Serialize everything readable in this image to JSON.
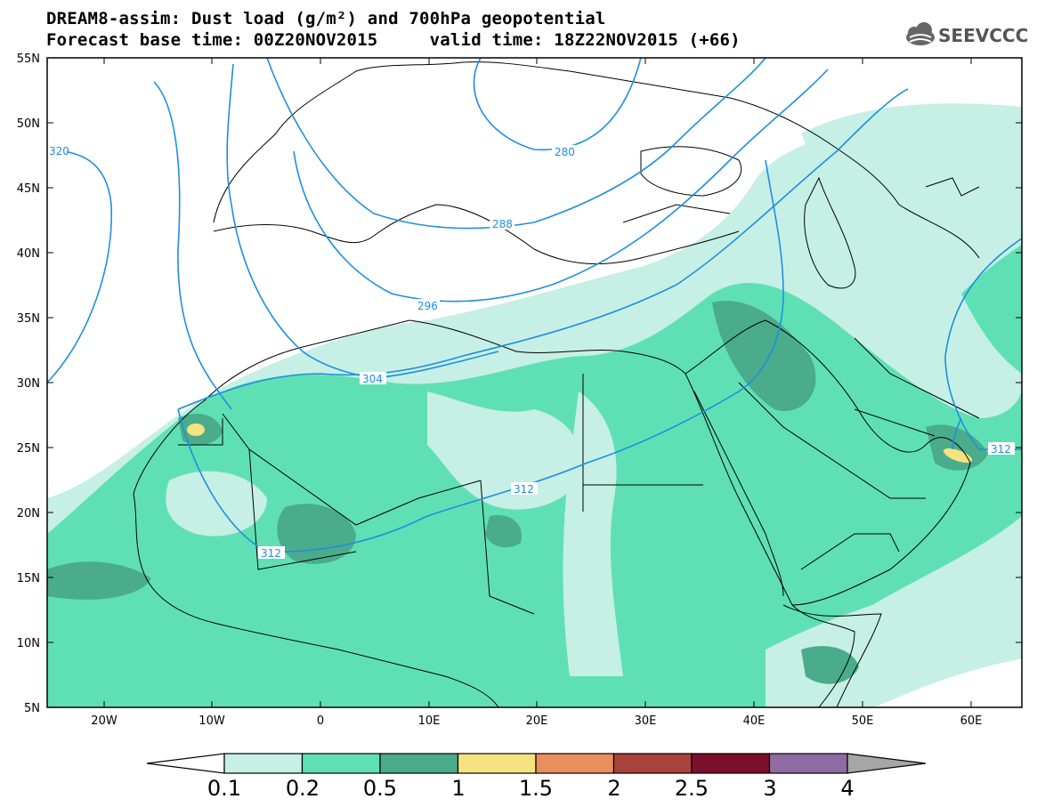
{
  "title": {
    "line1": "DREAM8-assim: Dust load (g/m²) and 700hPa geopotential",
    "line2": "Forecast base time: 00Z20NOV2015     valid time: 18Z22NOV2015 (+66)"
  },
  "logo": {
    "text": "SEEVCCC",
    "icon": "cloud-icon"
  },
  "map": {
    "lat_labels": [
      "55N",
      "50N",
      "45N",
      "40N",
      "35N",
      "30N",
      "25N",
      "20N",
      "15N",
      "10N",
      "5N"
    ],
    "lon_labels": [
      "20W",
      "10W",
      "0",
      "10E",
      "20E",
      "30E",
      "40E",
      "50E",
      "60E"
    ],
    "isohypse_labels": [
      "320",
      "280",
      "288",
      "296",
      "304",
      "312",
      "312",
      "312"
    ]
  },
  "colorbar": {
    "labels": [
      "0.1",
      "0.2",
      "0.5",
      "1",
      "1.5",
      "2",
      "2.5",
      "3",
      "4"
    ],
    "colors": [
      "#c6efe6",
      "#5fe0b4",
      "#4aac8b",
      "#f4e37f",
      "#e88e5f",
      "#a8423a",
      "#7c0f2c",
      "#8f6ba3"
    ],
    "low_color": "#ffffff",
    "high_color": "#a6a6a6"
  },
  "colors": {
    "dust_light": "#c6efe6",
    "dust_mid": "#5fe0b4",
    "dust_dark": "#4aac8b",
    "dust_yellow": "#f4e37f",
    "contour": "#1e8fe0"
  }
}
